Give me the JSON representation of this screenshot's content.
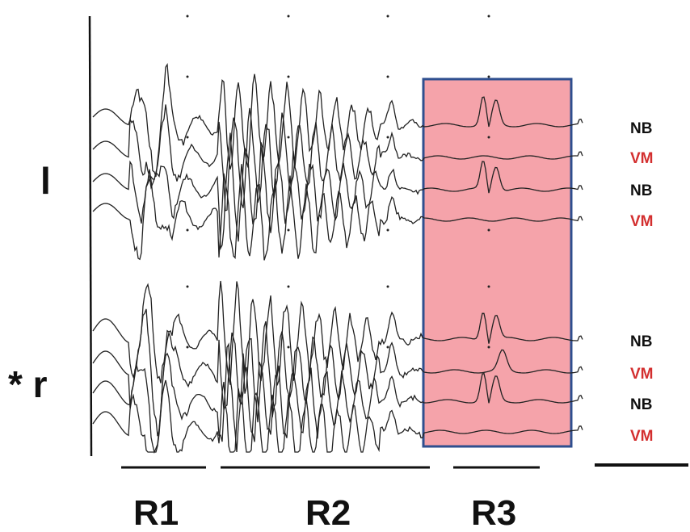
{
  "chart_data": {
    "type": "line",
    "side_labels": [
      {
        "text": "l"
      },
      {
        "text": "* r"
      }
    ],
    "traces": [
      {
        "label": "NB",
        "side": "l",
        "color": "#111111"
      },
      {
        "label": "VM",
        "side": "l",
        "color": "#d32f2f"
      },
      {
        "label": "NB",
        "side": "l",
        "color": "#111111"
      },
      {
        "label": "VM",
        "side": "l",
        "color": "#d32f2f"
      },
      {
        "label": "NB",
        "side": "r",
        "color": "#111111"
      },
      {
        "label": "VM",
        "side": "r",
        "color": "#d32f2f"
      },
      {
        "label": "NB",
        "side": "r",
        "color": "#111111"
      },
      {
        "label": "VM",
        "side": "r",
        "color": "#d32f2f"
      }
    ],
    "regions": [
      {
        "label": "R1"
      },
      {
        "label": "R2"
      },
      {
        "label": "R3",
        "highlighted": true
      }
    ],
    "highlight_color": "#f5a3aa",
    "highlight_border": "#2f4f8f",
    "has_scale_bar": true
  }
}
